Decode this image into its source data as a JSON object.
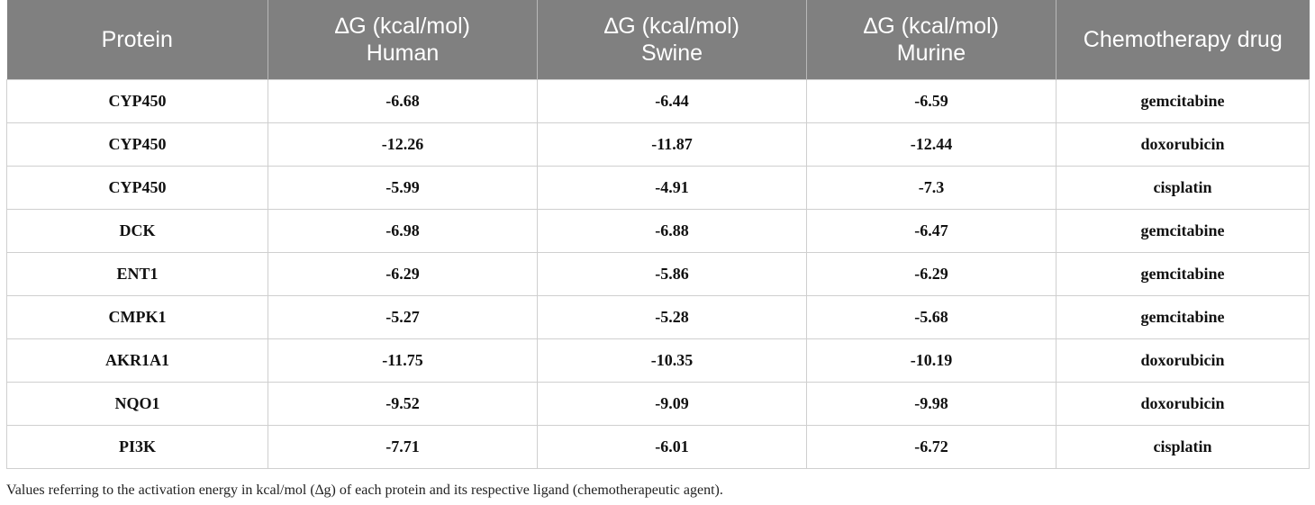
{
  "table": {
    "headers": [
      "Protein",
      "∆G (kcal/mol) Human",
      "∆G (kcal/mol) Swine",
      "∆G (kcal/mol) Murine",
      "Chemotherapy drug"
    ],
    "rows": [
      [
        "CYP450",
        "-6.68",
        "-6.44",
        "-6.59",
        "gemcitabine"
      ],
      [
        "CYP450",
        "-12.26",
        "-11.87",
        "-12.44",
        "doxorubicin"
      ],
      [
        "CYP450",
        "-5.99",
        "-4.91",
        "-7.3",
        "cisplatin"
      ],
      [
        "DCK",
        "-6.98",
        "-6.88",
        "-6.47",
        "gemcitabine"
      ],
      [
        "ENT1",
        "-6.29",
        "-5.86",
        "-6.29",
        "gemcitabine"
      ],
      [
        "CMPK1",
        "-5.27",
        "-5.28",
        "-5.68",
        "gemcitabine"
      ],
      [
        "AKR1A1",
        "-11.75",
        "-10.35",
        "-10.19",
        "doxorubicin"
      ],
      [
        "NQO1",
        "-9.52",
        "-9.09",
        "-9.98",
        "doxorubicin"
      ],
      [
        "PI3K",
        "-7.71",
        "-6.01",
        "-6.72",
        "cisplatin"
      ]
    ]
  },
  "footnote": "Values referring to the activation energy in kcal/mol (∆g) of each protein and its respective ligand (chemotherapeutic agent).",
  "colors": {
    "header_bg": "#808080",
    "header_text": "#ffffff",
    "grid": "#cfcfcf"
  }
}
